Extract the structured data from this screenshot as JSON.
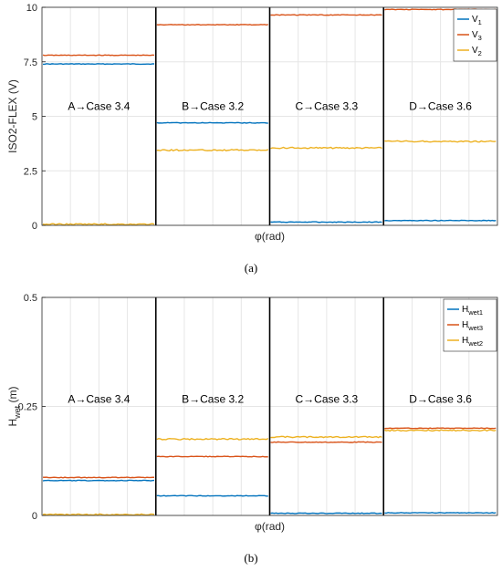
{
  "colors": {
    "blue": "#0072BD",
    "orange": "#D95319",
    "yellow": "#EDB120",
    "grid": "#e6e6e6",
    "axis": "#262626"
  },
  "chart_data": [
    {
      "type": "line",
      "caption": "(a)",
      "xlabel": "φ(rad)",
      "ylabel": "ISO2-FLEX (V)",
      "ylim": [
        0,
        10
      ],
      "yticks": [
        0,
        2.5,
        5,
        7.5,
        10
      ],
      "ytick_labels": [
        "0",
        "2.5",
        "5",
        "7.5",
        "10"
      ],
      "grid": true,
      "legend_position": "top-right",
      "segments": [
        "A→Case 3.4",
        "B→Case 3.2",
        "C→Case 3.3",
        "D→Case 3.6"
      ],
      "annotation_y": 5.3,
      "series": [
        {
          "legend_main": "V",
          "legend_sub": "1",
          "color_key": "blue",
          "values": [
            7.4,
            4.7,
            0.15,
            0.22
          ]
        },
        {
          "legend_main": "V",
          "legend_sub": "3",
          "color_key": "orange",
          "values": [
            7.8,
            9.2,
            9.65,
            9.9
          ]
        },
        {
          "legend_main": "V",
          "legend_sub": "2",
          "color_key": "yellow",
          "values": [
            0.05,
            3.45,
            3.55,
            3.85
          ]
        }
      ]
    },
    {
      "type": "line",
      "caption": "(b)",
      "xlabel": "φ(rad)",
      "ylabel_main": "H",
      "ylabel_sub": "wet",
      "ylabel_unit": " (m)",
      "ylim": [
        0,
        0.5
      ],
      "yticks": [
        0,
        0.25,
        0.5
      ],
      "ytick_labels": [
        "0",
        "0.25",
        "0.5"
      ],
      "grid": true,
      "legend_position": "top-right",
      "segments": [
        "A→Case 3.4",
        "B→Case 3.2",
        "C→Case 3.3",
        "D→Case 3.6"
      ],
      "annotation_y": 0.258,
      "series": [
        {
          "legend_main": "H",
          "legend_sub": "wet1",
          "color_key": "blue",
          "values": [
            0.08,
            0.045,
            0.005,
            0.006
          ]
        },
        {
          "legend_main": "H",
          "legend_sub": "wet3",
          "color_key": "orange",
          "values": [
            0.087,
            0.135,
            0.168,
            0.2
          ]
        },
        {
          "legend_main": "H",
          "legend_sub": "wet2",
          "color_key": "yellow",
          "values": [
            0.002,
            0.175,
            0.18,
            0.195
          ]
        }
      ]
    }
  ]
}
